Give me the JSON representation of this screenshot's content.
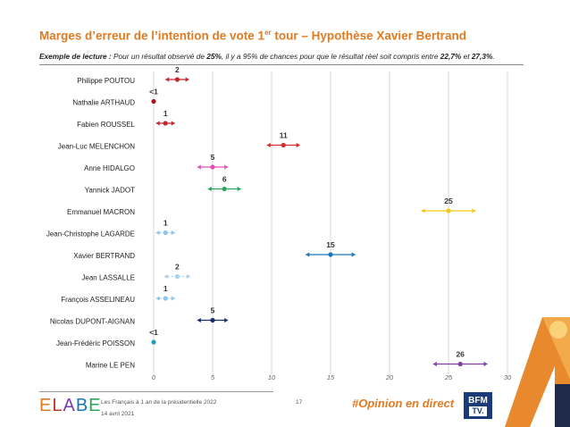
{
  "header": {
    "title_main": "Marges d’erreur de l’intention de vote 1",
    "title_sup": "er",
    "title_rest": " tour – Hypothèse Xavier Bertrand",
    "reading_label": "Exemple de lecture :",
    "reading_t1": " Pour un résultat observé de ",
    "reading_b1": "25%",
    "reading_t2": ", il y a 95% de chances pour que le résultat réel soit compris entre ",
    "reading_b2": "22,7%",
    "reading_t3": " et ",
    "reading_b3": "27,3%",
    "reading_t4": "."
  },
  "chart_data": {
    "type": "scatter",
    "orientation": "horizontal",
    "xlim": [
      0,
      30
    ],
    "xticks": [
      "0",
      "5",
      "10",
      "15",
      "20",
      "25",
      "30"
    ],
    "grid": "vertical",
    "candidates": [
      {
        "name": "Philippe POUTOU",
        "label": "2",
        "value": 2,
        "low": 1,
        "high": 3,
        "color": "#c0282d",
        "dashed": false
      },
      {
        "name": "Nathalie ARTHAUD",
        "label": "<1",
        "value": 0,
        "low": null,
        "high": null,
        "color": "#b0141c",
        "dashed": false
      },
      {
        "name": "Fabien ROUSSEL",
        "label": "1",
        "value": 1,
        "low": 0.2,
        "high": 1.8,
        "color": "#c0282d",
        "dashed": false
      },
      {
        "name": "Jean-Luc MELENCHON",
        "label": "11",
        "value": 11,
        "low": 9.6,
        "high": 12.4,
        "color": "#d92b2b",
        "dashed": false
      },
      {
        "name": "Anne HIDALGO",
        "label": "5",
        "value": 5,
        "low": 3.7,
        "high": 6.3,
        "color": "#e34fb8",
        "dashed": false
      },
      {
        "name": "Yannick JADOT",
        "label": "6",
        "value": 6,
        "low": 4.6,
        "high": 7.4,
        "color": "#2aa65c",
        "dashed": false
      },
      {
        "name": "Emmanuel MACRON",
        "label": "25",
        "value": 25,
        "low": 22.7,
        "high": 27.3,
        "color": "#f2c81c",
        "dashed": false
      },
      {
        "name": "Jean-Christophe LAGARDE",
        "label": "1",
        "value": 1,
        "low": 0.2,
        "high": 1.8,
        "color": "#8ec6ea",
        "dashed": true
      },
      {
        "name": "Xavier BERTRAND",
        "label": "15",
        "value": 15,
        "low": 12.9,
        "high": 17.1,
        "color": "#1b78b6",
        "dashed": false
      },
      {
        "name": "Jean LASSALLE",
        "label": "2",
        "value": 2,
        "low": 0.9,
        "high": 3.1,
        "color": "#a8d4f0",
        "dashed": true
      },
      {
        "name": "François ASSELINEAU",
        "label": "1",
        "value": 1,
        "low": 0.2,
        "high": 1.8,
        "color": "#8ec6ea",
        "dashed": true
      },
      {
        "name": "Nicolas DUPONT-AIGNAN",
        "label": "5",
        "value": 5,
        "low": 3.7,
        "high": 6.3,
        "color": "#1a2e6e",
        "dashed": false
      },
      {
        "name": "Jean-Frédéric POISSON",
        "label": "<1",
        "value": 0,
        "low": null,
        "high": null,
        "color": "#1f9cc4",
        "dashed": false
      },
      {
        "name": "Marine LE PEN",
        "label": "26",
        "value": 26,
        "low": 23.7,
        "high": 28.3,
        "color": "#7b3fa8",
        "dashed": false
      }
    ]
  },
  "footer": {
    "logo": "ELABE",
    "source": "Les Français à 1 an de la présidentielle 2022",
    "date": "14 avril 2021",
    "page": "17",
    "hashtag": "#Opinion en direct",
    "bfm_top": "BFM",
    "bfm_bottom": "TV."
  }
}
